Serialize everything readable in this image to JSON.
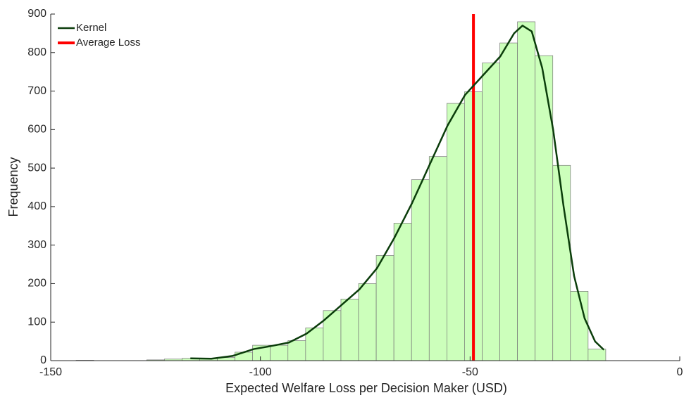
{
  "chart_data": {
    "type": "histogram",
    "xlabel": "Expected Welfare Loss per Decision Maker (USD)",
    "ylabel": "Frequency",
    "bins": [
      -143.95,
      -139.74,
      -135.53,
      -131.32,
      -127.11,
      -122.9,
      -118.69,
      -114.48,
      -110.27,
      -106.06,
      -101.85,
      -97.64,
      -93.43,
      -89.22,
      -85.01,
      -80.8,
      -76.59,
      -72.38,
      -68.17,
      -63.96,
      -59.75,
      -55.54,
      -51.33,
      -47.12,
      -42.91,
      -38.7,
      -34.49,
      -30.28,
      -26.07,
      -21.86,
      -17.65
    ],
    "values": [
      1,
      0,
      0,
      0,
      2,
      4,
      6,
      5,
      8,
      22,
      40,
      40,
      52,
      85,
      130,
      160,
      200,
      273,
      357,
      470,
      530,
      668,
      698,
      773,
      825,
      880,
      792,
      507,
      180,
      30
    ],
    "color": "#ccffbb",
    "edge_color": "#777777",
    "kernel": {
      "name": "Kernel",
      "color": "#0b3d0b",
      "x": [
        -116.7,
        -111.7,
        -106.7,
        -101.6,
        -97.4,
        -93.2,
        -89.0,
        -84.8,
        -80.6,
        -76.4,
        -72.2,
        -68.0,
        -63.8,
        -59.6,
        -55.4,
        -51.2,
        -47.0,
        -42.8,
        -39.5,
        -37.5,
        -35.3,
        -32.8,
        -30.2,
        -27.7,
        -25.2,
        -22.7,
        -20.2,
        -18.1
      ],
      "values": [
        6,
        5,
        12,
        30,
        38,
        47,
        70,
        105,
        145,
        185,
        240,
        320,
        410,
        510,
        610,
        690,
        740,
        790,
        850,
        870,
        855,
        760,
        600,
        400,
        220,
        110,
        50,
        28
      ]
    },
    "average_line": {
      "name": "Average Loss",
      "color": "#ff0000",
      "x": -49.2
    },
    "xlim": [
      -150,
      0
    ],
    "xticks": [
      -150,
      -100,
      -50,
      0
    ],
    "ylim": [
      0,
      900
    ],
    "yticks": [
      0,
      100,
      200,
      300,
      400,
      500,
      600,
      700,
      800,
      900
    ],
    "grid": false,
    "legend": "upper left"
  }
}
